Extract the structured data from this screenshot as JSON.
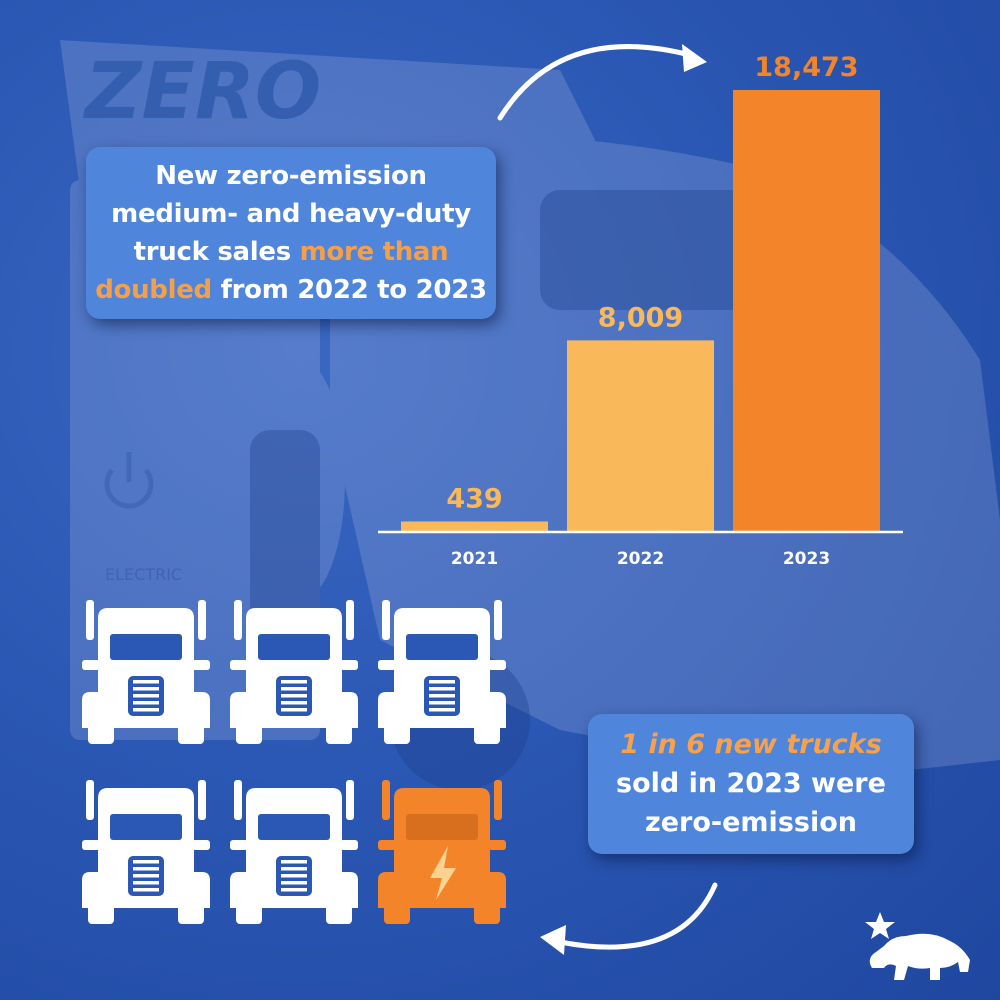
{
  "headline": {
    "line1": "New zero-emission",
    "line2": "medium- and heavy-duty",
    "line3_pre": "truck sales ",
    "line3_hl": "more than",
    "line4_hl": "doubled",
    "line4_post": " from 2022 to 2023"
  },
  "stat": {
    "line1_hl": "1 in 6 new trucks",
    "line2": "sold in 2023 were",
    "line3": "zero-emission"
  },
  "background_text": {
    "truck_brand": "ZERO",
    "truck_side": "ELECTRIC"
  },
  "colors": {
    "background": "#2b58b4",
    "panel": "#4f86db",
    "bar_light": "#f9b95b",
    "bar_highlight": "#f4842a",
    "label_light": "#f9b95b",
    "label_highlight": "#f4842a"
  },
  "chart_data": {
    "type": "bar",
    "categories": [
      "2021",
      "2022",
      "2023"
    ],
    "values": [
      439,
      8009,
      18473
    ],
    "value_labels": [
      "439",
      "8,009",
      "18,473"
    ],
    "highlight_index": 2,
    "ylim": [
      0,
      18473
    ],
    "grid": false
  },
  "icons": {
    "truck_count": 6,
    "highlighted_truck_index": 5,
    "truck_icon": "semi-truck-front-icon",
    "highlight_icon": "lightning-bolt-icon",
    "logo": "california-bear-star-logo"
  }
}
